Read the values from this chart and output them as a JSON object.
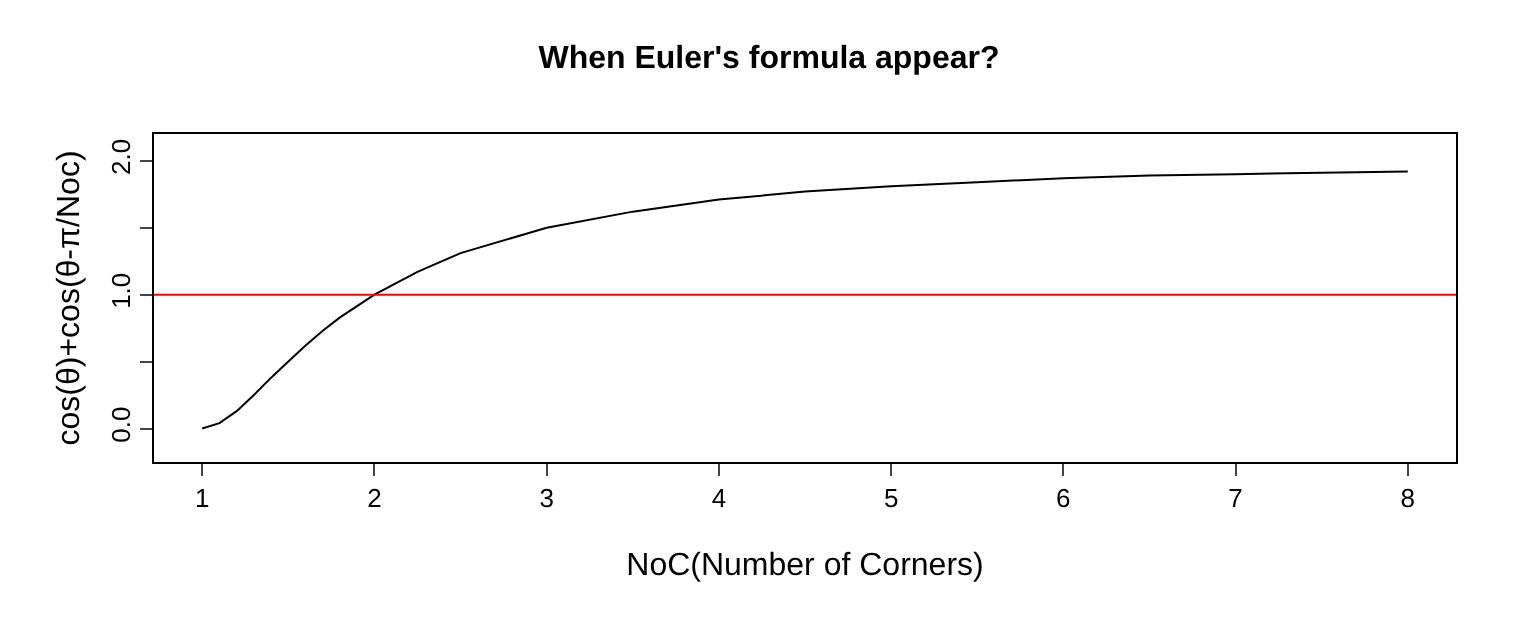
{
  "chart_data": {
    "type": "line",
    "title": "When Euler's formula appear?",
    "xlabel": "NoC(Number of Corners)",
    "ylabel": "cos(θ)+cos(θ-π/Noc)",
    "x": [
      1,
      1.1,
      1.2,
      1.3,
      1.4,
      1.5,
      1.6,
      1.7,
      1.8,
      2,
      2.25,
      2.5,
      3,
      3.5,
      4,
      4.5,
      5,
      5.5,
      6,
      6.5,
      7,
      7.5,
      8
    ],
    "series": [
      {
        "color": "#000000",
        "values": [
          0,
          0.04,
          0.13,
          0.25,
          0.38,
          0.5,
          0.62,
          0.73,
          0.83,
          1,
          1.17,
          1.31,
          1.5,
          1.62,
          1.71,
          1.77,
          1.81,
          1.84,
          1.87,
          1.89,
          1.9,
          1.91,
          1.92
        ]
      }
    ],
    "xlim": [
      0.72,
      8.28
    ],
    "xticks": [
      1,
      2,
      3,
      4,
      5,
      6,
      7,
      8
    ],
    "ylim": [
      -0.25,
      2.2
    ],
    "yticks": [
      {
        "value": 0,
        "label": "0.0"
      },
      {
        "value": 0.5,
        "label": null
      },
      {
        "value": 1,
        "label": "1.0"
      },
      {
        "value": 1.5,
        "label": null
      },
      {
        "value": 2,
        "label": "2.0"
      }
    ],
    "ref_lines": [
      {
        "axis": "y",
        "value": 1,
        "color": "#ff0000"
      }
    ],
    "grid": false,
    "marker": "none",
    "line_style": "solid"
  }
}
